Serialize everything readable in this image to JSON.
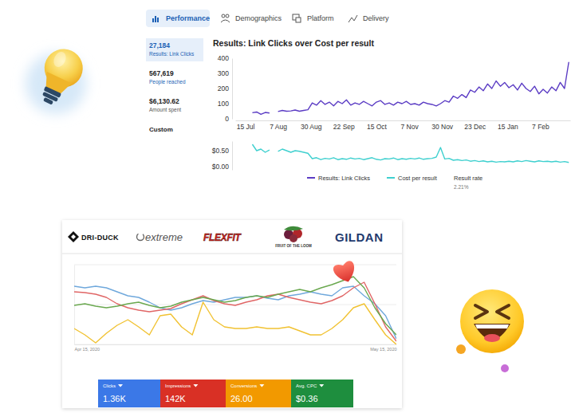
{
  "tabs": [
    "Performance",
    "Demographics",
    "Platform",
    "Delivery"
  ],
  "sidebar": [
    {
      "value": "27,184",
      "label": "Results: Link Clicks"
    },
    {
      "value": "567,619",
      "label": "People reached"
    },
    {
      "value": "$6,130.62",
      "label": "Amount spent"
    }
  ],
  "sidebar_custom": "Custom",
  "brands": [
    "DRI-DUCK",
    "extreme",
    "FLEXFIT",
    "FRUIT OF THE LOOM",
    "GILDAN"
  ],
  "kpis": [
    {
      "label": "Clicks",
      "value": "1.36K"
    },
    {
      "label": "Impressions",
      "value": "142K"
    },
    {
      "label": "Conversions",
      "value": "26.00"
    },
    {
      "label": "Avg. CPC",
      "value": "$0.36"
    }
  ],
  "chart_data": [
    {
      "type": "line",
      "title": "Results: Link Clicks over Cost per result",
      "x": [
        5,
        8,
        11,
        14,
        17,
        20,
        23,
        26,
        29,
        32,
        35,
        38,
        41,
        44,
        47,
        50,
        53,
        56,
        59,
        62,
        65,
        68,
        71,
        74,
        77,
        80,
        83,
        86,
        89,
        92,
        95,
        98,
        101,
        104,
        107,
        110,
        113,
        116,
        119,
        122,
        125,
        128,
        131,
        134,
        137,
        140,
        143,
        146,
        149,
        152,
        155,
        158,
        161,
        164,
        167,
        170,
        173,
        176,
        179,
        182,
        185,
        188,
        191,
        194,
        197,
        200,
        203,
        206,
        209,
        212,
        215,
        218,
        221,
        224,
        227
      ],
      "xlim": [
        -7,
        228
      ],
      "xticks": [
        {
          "value": 0,
          "label": "15 Jul"
        },
        {
          "value": 23,
          "label": "7 Aug"
        },
        {
          "value": 46,
          "label": "30 Aug"
        },
        {
          "value": 69,
          "label": "22 Sep"
        },
        {
          "value": 92,
          "label": "15 Oct"
        },
        {
          "value": 115,
          "label": "7 Nov"
        },
        {
          "value": 138,
          "label": "30 Nov"
        },
        {
          "value": 161,
          "label": "23 Dec"
        },
        {
          "value": 184,
          "label": "15 Jan"
        },
        {
          "value": 207,
          "label": "7 Feb"
        }
      ],
      "ylim": [
        0,
        400
      ],
      "yticks": [
        0,
        100,
        200,
        300,
        400
      ],
      "y2lim": [
        -0.1,
        0.8
      ],
      "y2ticks": [
        {
          "value": 0,
          "label": "$0.00"
        },
        {
          "value": 0.5,
          "label": "$0.50"
        }
      ],
      "grid": false,
      "legend": "bottom",
      "series": [
        {
          "name": "Results: Link Clicks",
          "color": "#5b3cc4",
          "values": [
            40,
            45,
            30,
            42,
            38,
            null,
            48,
            55,
            50,
            52,
            58,
            50,
            55,
            60,
            105,
            90,
            120,
            95,
            110,
            85,
            115,
            100,
            125,
            90,
            105,
            95,
            115,
            100,
            85,
            110,
            120,
            95,
            105,
            90,
            110,
            100,
            115,
            95,
            100,
            90,
            110,
            100,
            95,
            85,
            100,
            120,
            110,
            150,
            135,
            160,
            140,
            190,
            175,
            210,
            185,
            230,
            200,
            250,
            215,
            240,
            205,
            225,
            190,
            235,
            200,
            180,
            215,
            165,
            195,
            170,
            210,
            185,
            240,
            200,
            375
          ]
        },
        {
          "name": "Cost per result",
          "color": "#3fd0cf",
          "axis": "y2",
          "values": [
            0.7,
            0.5,
            0.55,
            0.45,
            0.52,
            null,
            0.48,
            0.55,
            0.5,
            0.45,
            0.5,
            0.48,
            0.45,
            0.42,
            0.25,
            0.28,
            0.22,
            0.26,
            0.24,
            0.28,
            0.22,
            0.25,
            0.23,
            0.27,
            0.24,
            0.26,
            0.22,
            0.25,
            0.28,
            0.23,
            0.21,
            0.25,
            0.24,
            0.27,
            0.22,
            0.25,
            0.23,
            0.26,
            0.24,
            0.27,
            0.23,
            0.25,
            0.26,
            0.3,
            0.6,
            0.24,
            0.26,
            0.2,
            0.22,
            0.19,
            0.21,
            0.17,
            0.19,
            0.16,
            0.18,
            0.15,
            0.17,
            0.14,
            0.16,
            0.15,
            0.17,
            0.15,
            0.18,
            0.16,
            0.19,
            0.17,
            0.15,
            0.18,
            0.16,
            0.17,
            0.15,
            0.17,
            0.14,
            0.16,
            0.13
          ]
        }
      ],
      "annotations": [
        "Result rate",
        "2.21%"
      ]
    },
    {
      "type": "line",
      "categories": [
        "Apr 15, 2020",
        null,
        null,
        null,
        null,
        null,
        null,
        null,
        null,
        null,
        null,
        null,
        null,
        null,
        null,
        null,
        null,
        null,
        null,
        null,
        null,
        null,
        null,
        null,
        null,
        null,
        null,
        null,
        null,
        null,
        "May 15, 2020"
      ],
      "ylim": [
        0,
        100
      ],
      "yticks": [
        0,
        50,
        100
      ],
      "grid": true,
      "tick_labels": "x",
      "series": [
        {
          "color": "#6fa8dc",
          "values": [
            73,
            71,
            73,
            71,
            66,
            61,
            59,
            53,
            46,
            43,
            46,
            51,
            55,
            53,
            56,
            59,
            59,
            61,
            58,
            56,
            61,
            63,
            66,
            63,
            61,
            71,
            73,
            61,
            51,
            36,
            7
          ]
        },
        {
          "color": "#e06666",
          "values": [
            66,
            65,
            63,
            59,
            51,
            46,
            43,
            41,
            43,
            45,
            51,
            56,
            61,
            55,
            51,
            49,
            53,
            56,
            61,
            63,
            59,
            56,
            53,
            51,
            55,
            61,
            71,
            78,
            51,
            22,
            4
          ]
        },
        {
          "color": "#6aa84f",
          "values": [
            49,
            51,
            48,
            46,
            48,
            51,
            53,
            49,
            46,
            48,
            53,
            56,
            59,
            56,
            53,
            55,
            59,
            61,
            59,
            63,
            66,
            69,
            66,
            71,
            75,
            80,
            85,
            71,
            46,
            26,
            12
          ]
        },
        {
          "color": "#f1c232",
          "values": [
            20,
            12,
            2,
            14,
            24,
            31,
            22,
            12,
            36,
            38,
            22,
            12,
            53,
            31,
            22,
            20,
            20,
            22,
            20,
            20,
            22,
            17,
            12,
            12,
            20,
            31,
            46,
            51,
            31,
            12,
            0
          ]
        }
      ]
    }
  ]
}
